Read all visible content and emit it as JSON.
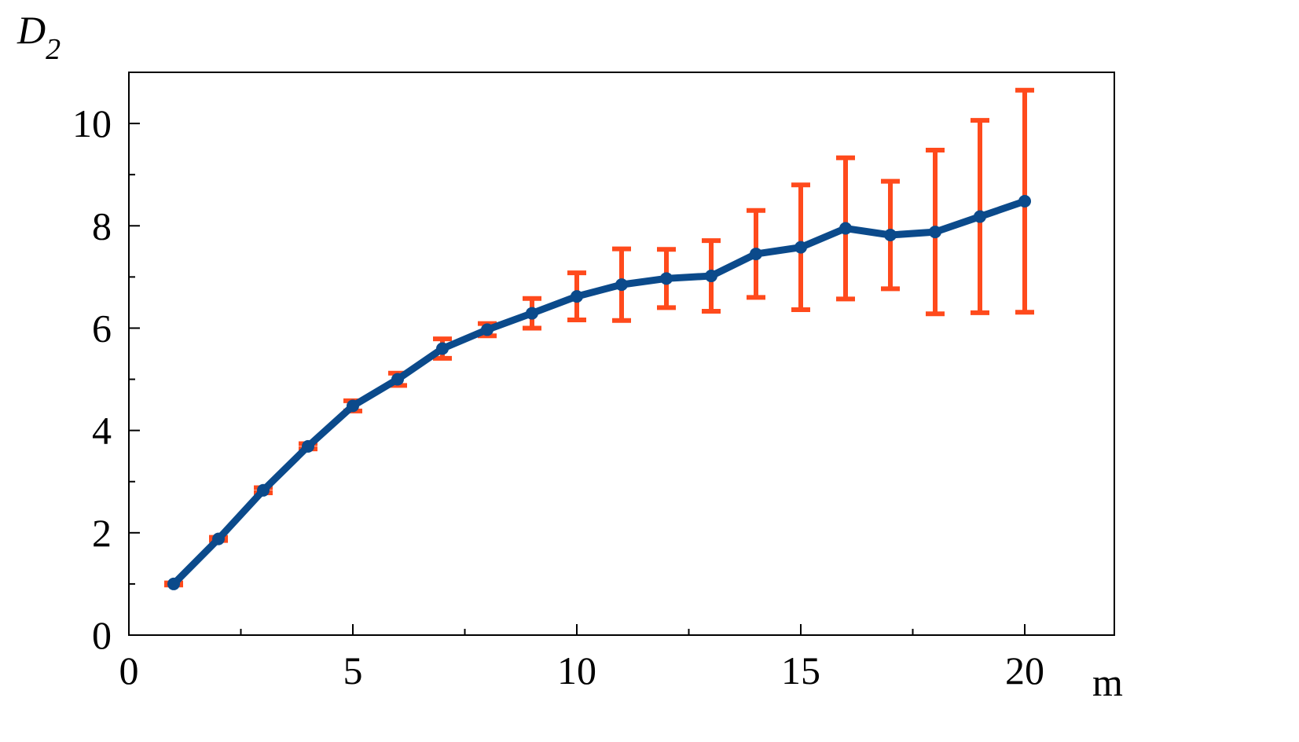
{
  "chart_data": {
    "type": "line",
    "ylabel": "D",
    "ylabel_subscript": "2",
    "xlabel": "m",
    "x": [
      1,
      2,
      3,
      4,
      5,
      6,
      7,
      8,
      9,
      10,
      11,
      12,
      13,
      14,
      15,
      16,
      17,
      18,
      19,
      20
    ],
    "series": [
      {
        "color": "#0b4a8b",
        "error_color": "#ff4a1c",
        "values": [
          1.0,
          1.88,
          2.83,
          3.69,
          4.48,
          5.0,
          5.6,
          5.97,
          6.29,
          6.62,
          6.85,
          6.97,
          7.02,
          7.45,
          7.58,
          7.95,
          7.82,
          7.88,
          8.18,
          8.48
        ],
        "errors": [
          0.02,
          0.03,
          0.05,
          0.05,
          0.1,
          0.12,
          0.19,
          0.12,
          0.29,
          0.46,
          0.7,
          0.57,
          0.69,
          0.85,
          1.22,
          1.38,
          1.05,
          1.6,
          1.88,
          2.17
        ]
      }
    ],
    "xlim": [
      0,
      22
    ],
    "ylim": [
      0,
      11
    ],
    "xticks": [
      0,
      5,
      10,
      15,
      20
    ],
    "yticks": [
      0,
      2,
      4,
      6,
      8,
      10
    ],
    "x_minor_ticks": [
      2.5,
      7.5,
      12.5,
      17.5
    ],
    "y_minor_ticks": [
      1,
      3,
      5,
      7,
      9
    ],
    "grid": false
  }
}
